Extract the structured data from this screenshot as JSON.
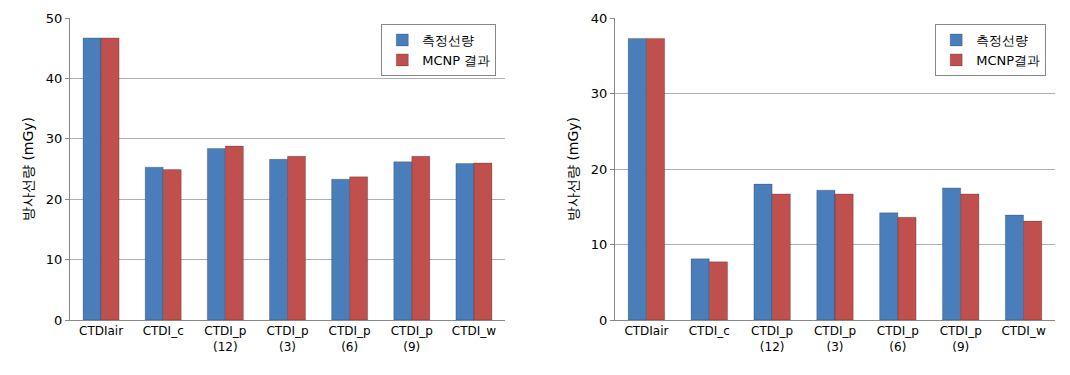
{
  "chart_data": [
    {
      "type": "bar",
      "y_label": "방사선량 (mGy)",
      "categories": [
        "CTDIair",
        "CTDI_c",
        "CTDI_p\n(12)",
        "CTDI_p\n(3)",
        "CTDI_p\n(6)",
        "CTDI_p\n(9)",
        "CTDI_w"
      ],
      "series": [
        {
          "name": "측정선량",
          "color": "#4a7ebb",
          "values": [
            46.7,
            25.3,
            28.4,
            26.6,
            23.3,
            26.2,
            25.9
          ]
        },
        {
          "name": "MCNP 결과",
          "color": "#c0504d",
          "values": [
            46.7,
            24.9,
            28.8,
            27.1,
            23.7,
            27.1,
            26.0
          ]
        }
      ],
      "ylim": [
        0,
        50
      ],
      "yticks": [
        0,
        10,
        20,
        30,
        40,
        50
      ],
      "grid": true,
      "legend": "top-right"
    },
    {
      "type": "bar",
      "y_label": "방사선량 (mGy)",
      "categories": [
        "CTDIair",
        "CTDI_c",
        "CTDI_p\n(12)",
        "CTDI_p\n(3)",
        "CTDI_p\n(6)",
        "CTDI_p\n(9)",
        "CTDI_w"
      ],
      "series": [
        {
          "name": "측정선량",
          "color": "#4a7ebb",
          "values": [
            37.3,
            8.1,
            18.0,
            17.2,
            14.2,
            17.5,
            13.9
          ]
        },
        {
          "name": "MCNP결과",
          "color": "#c0504d",
          "values": [
            37.3,
            7.7,
            16.7,
            16.7,
            13.6,
            16.7,
            13.1
          ]
        }
      ],
      "ylim": [
        0,
        40
      ],
      "yticks": [
        0,
        10,
        20,
        30,
        40
      ],
      "grid": true,
      "legend": "top-right"
    }
  ]
}
